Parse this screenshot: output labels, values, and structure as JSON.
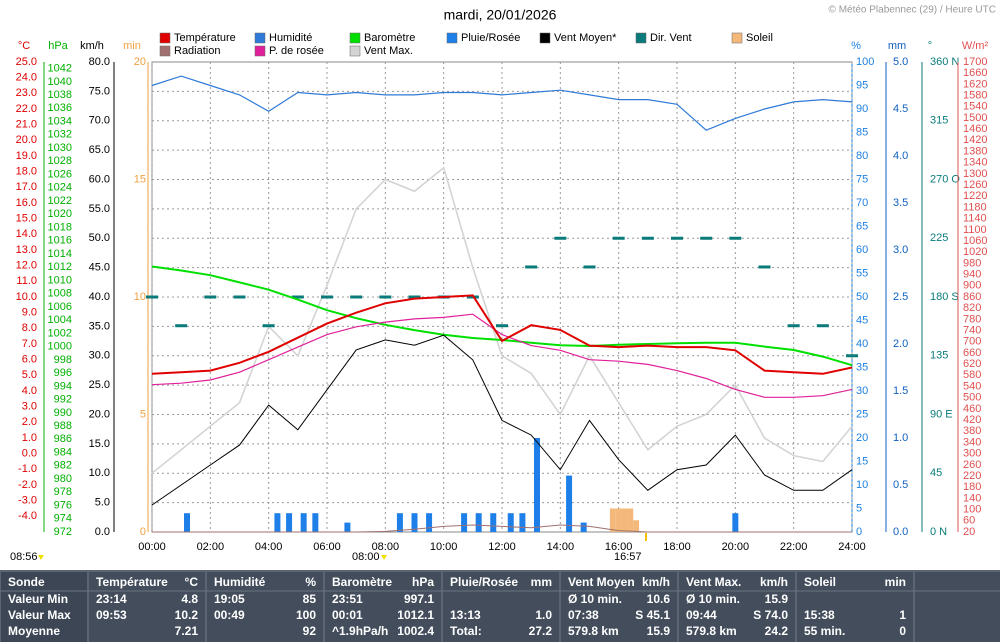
{
  "title": "mardi, 20/01/2026",
  "credit": "© Météo Plabennec (29) / Heure UTC",
  "chart_data": {
    "type": "line",
    "x": [
      0,
      1,
      2,
      3,
      4,
      5,
      6,
      7,
      8,
      9,
      10,
      11,
      12,
      13,
      14,
      15,
      16,
      17,
      18,
      19,
      20,
      21,
      22,
      23,
      24
    ],
    "xlim": [
      0,
      24
    ],
    "xticks": [
      {
        "value": 0,
        "label": "00:00"
      },
      {
        "value": 2,
        "label": "02:00"
      },
      {
        "value": 4,
        "label": "04:00"
      },
      {
        "value": 6,
        "label": "06:00"
      },
      {
        "value": 8,
        "label": "08:00"
      },
      {
        "value": 10,
        "label": "10:00"
      },
      {
        "value": 12,
        "label": "12:00"
      },
      {
        "value": 14,
        "label": "14:00"
      },
      {
        "value": 16,
        "label": "16:00"
      },
      {
        "value": 18,
        "label": "18:00"
      },
      {
        "value": 20,
        "label": "20:00"
      },
      {
        "value": 22,
        "label": "22:00"
      },
      {
        "value": 24,
        "label": "24:00"
      }
    ],
    "axes": [
      {
        "label": "°C",
        "side": "left",
        "color": "#e00000",
        "ylim": [
          -5,
          25
        ],
        "yticks": [
          {
            "value": 25,
            "label": "25.0"
          },
          {
            "value": 24,
            "label": "24.0"
          },
          {
            "value": 23,
            "label": "23.0"
          },
          {
            "value": 22,
            "label": "22.0"
          },
          {
            "value": 21,
            "label": "21.0"
          },
          {
            "value": 20,
            "label": "20.0"
          },
          {
            "value": 19,
            "label": "19.0"
          },
          {
            "value": 18,
            "label": "18.0"
          },
          {
            "value": 17,
            "label": "17.0"
          },
          {
            "value": 16,
            "label": "16.0"
          },
          {
            "value": 15,
            "label": "15.0"
          },
          {
            "value": 14,
            "label": "14.0"
          },
          {
            "value": 13,
            "label": "13.0"
          },
          {
            "value": 12,
            "label": "12.0"
          },
          {
            "value": 11,
            "label": "11.0"
          },
          {
            "value": 10,
            "label": "10.0"
          },
          {
            "value": 9,
            "label": "9.0"
          },
          {
            "value": 8,
            "label": "8.0"
          },
          {
            "value": 7,
            "label": "7.0"
          },
          {
            "value": 6,
            "label": "6.0"
          },
          {
            "value": 5,
            "label": "5.0"
          },
          {
            "value": 4,
            "label": "4.0"
          },
          {
            "value": 3,
            "label": "3.0"
          },
          {
            "value": 2,
            "label": "2.0"
          },
          {
            "value": 1,
            "label": "1.0"
          },
          {
            "value": 0,
            "label": "0.0"
          },
          {
            "value": -1,
            "label": "-1.0"
          },
          {
            "value": -2,
            "label": "-2.0"
          },
          {
            "value": -3,
            "label": "-3.0"
          },
          {
            "value": -4,
            "label": "-4.0"
          }
        ]
      },
      {
        "label": "hPa",
        "side": "left",
        "color": "#00b000",
        "ylim": [
          972,
          1043
        ],
        "yticks": [
          972,
          974,
          976,
          978,
          980,
          982,
          984,
          986,
          988,
          990,
          992,
          994,
          996,
          998,
          1000,
          1002,
          1004,
          1006,
          1008,
          1010,
          1012,
          1014,
          1016,
          1018,
          1020,
          1022,
          1024,
          1026,
          1028,
          1030,
          1032,
          1034,
          1036,
          1038,
          1040,
          1042
        ]
      },
      {
        "label": "km/h",
        "side": "left",
        "color": "#000000",
        "grid": true,
        "ylim": [
          0,
          80
        ],
        "yticks": [
          {
            "value": 0,
            "label": "0.0"
          },
          {
            "value": 5,
            "label": "5.0"
          },
          {
            "value": 10,
            "label": "10.0"
          },
          {
            "value": 15,
            "label": "15.0"
          },
          {
            "value": 20,
            "label": "20.0"
          },
          {
            "value": 25,
            "label": "25.0"
          },
          {
            "value": 30,
            "label": "30.0"
          },
          {
            "value": 35,
            "label": "35.0"
          },
          {
            "value": 40,
            "label": "40.0"
          },
          {
            "value": 45,
            "label": "45.0"
          },
          {
            "value": 50,
            "label": "50.0"
          },
          {
            "value": 55,
            "label": "55.0"
          },
          {
            "value": 60,
            "label": "60.0"
          },
          {
            "value": 65,
            "label": "65.0"
          },
          {
            "value": 70,
            "label": "70.0"
          },
          {
            "value": 75,
            "label": "75.0"
          },
          {
            "value": 80,
            "label": "80.0"
          }
        ]
      },
      {
        "label": "min",
        "side": "left",
        "color": "#f0a040",
        "ylim": [
          0,
          20
        ],
        "yticks": [
          0,
          5,
          10,
          15,
          20
        ]
      },
      {
        "label": "%",
        "side": "right",
        "color": "#2080e0",
        "ylim": [
          0,
          100
        ],
        "yticks": [
          0,
          5,
          10,
          15,
          20,
          25,
          30,
          35,
          40,
          45,
          50,
          55,
          60,
          65,
          70,
          75,
          80,
          85,
          90,
          95,
          100
        ]
      },
      {
        "label": "mm",
        "side": "right",
        "color": "#1060c0",
        "ylim": [
          0,
          5
        ],
        "yticks": [
          {
            "value": 0,
            "label": "0.0"
          },
          0.5,
          {
            "value": 1,
            "label": "1.0"
          },
          1.5,
          {
            "value": 2,
            "label": "2.0"
          },
          2.5,
          {
            "value": 3,
            "label": "3.0"
          },
          3.5,
          {
            "value": 4,
            "label": "4.0"
          },
          4.5,
          {
            "value": 5,
            "label": "5.0"
          }
        ]
      },
      {
        "label": "°",
        "side": "right",
        "color": "#0a7a7a",
        "ylim": [
          0,
          360
        ],
        "yticks": [
          {
            "value": 0,
            "label": "0   N"
          },
          45,
          {
            "value": 90,
            "label": "90   E"
          },
          135,
          {
            "value": 180,
            "label": "180 S"
          },
          225,
          {
            "value": 270,
            "label": "270 O"
          },
          315,
          {
            "value": 360,
            "label": "360 N"
          }
        ]
      },
      {
        "label": "W/m²",
        "side": "right",
        "color": "#e05050",
        "ylim": [
          20,
          1700
        ],
        "yticks": [
          20,
          60,
          100,
          140,
          180,
          220,
          260,
          300,
          340,
          380,
          420,
          460,
          500,
          540,
          580,
          620,
          660,
          700,
          740,
          780,
          820,
          860,
          900,
          940,
          980,
          1020,
          1060,
          1100,
          1140,
          1180,
          1220,
          1260,
          1300,
          1340,
          1380,
          1420,
          1460,
          1500,
          1540,
          1580,
          1620,
          1660,
          1700
        ]
      }
    ],
    "series": [
      {
        "name": "Température",
        "type": "line",
        "axis": "°C",
        "color": "#e00000",
        "values": [
          5.1,
          5.2,
          5.3,
          5.8,
          6.5,
          7.4,
          8.3,
          9.0,
          9.6,
          9.9,
          10.0,
          10.1,
          7.2,
          8.2,
          7.9,
          6.9,
          6.8,
          6.9,
          6.8,
          6.8,
          6.6,
          5.3,
          5.2,
          5.1,
          5.5
        ]
      },
      {
        "name": "Humidité",
        "type": "line",
        "axis": "%",
        "color": "#2f7ad8",
        "values": [
          95,
          97,
          95,
          93,
          89.5,
          93.5,
          93,
          93.5,
          93,
          93,
          93.5,
          93.5,
          93,
          93.5,
          94,
          93,
          92,
          92,
          91,
          85.5,
          88,
          90,
          91.5,
          92,
          91.5
        ]
      },
      {
        "name": "Baromètre",
        "type": "line",
        "axis": "hPa",
        "color": "#00e000",
        "values": [
          1012.1,
          1011.5,
          1010.8,
          1009.7,
          1008.6,
          1007.1,
          1005.5,
          1004.3,
          1003.3,
          1002.5,
          1001.8,
          1001.3,
          1001.0,
          1000.6,
          1000.2,
          1000.1,
          1000.3,
          1000.4,
          1000.5,
          1000.6,
          1000.6,
          1000.0,
          999.5,
          998.5,
          997.2
        ]
      },
      {
        "name": "Pluie/Rosée",
        "type": "bar",
        "axis": "mm",
        "color": "#1e7fe8",
        "x": [
          1.2,
          4.3,
          4.7,
          5.2,
          5.6,
          6.7,
          8.5,
          9.0,
          9.5,
          10.7,
          11.2,
          11.7,
          12.3,
          12.7,
          13.2,
          14.3,
          14.8,
          20.0
        ],
        "values": [
          0.2,
          0.2,
          0.2,
          0.2,
          0.2,
          0.1,
          0.2,
          0.2,
          0.2,
          0.2,
          0.2,
          0.2,
          0.2,
          0.2,
          1.0,
          0.6,
          0.1,
          0.2
        ]
      },
      {
        "name": "Vent Moyen*",
        "type": "line",
        "axis": "km/h",
        "color": "#000000",
        "values": [
          4.6,
          8.0,
          11.4,
          14.8,
          21.6,
          17.4,
          24.2,
          31.0,
          32.7,
          31.8,
          33.5,
          29.3,
          19.0,
          16.5,
          10.6,
          19.0,
          12.3,
          7.1,
          10.6,
          11.4,
          16.5,
          9.7,
          7.1,
          7.1,
          10.6
        ]
      },
      {
        "name": "Dir. Vent",
        "type": "dash",
        "axis": "°",
        "color": "#0a7a7a",
        "values": [
          180,
          158,
          180,
          180,
          158,
          180,
          180,
          180,
          180,
          180,
          180,
          180,
          158,
          203,
          225,
          203,
          225,
          225,
          225,
          225,
          225,
          203,
          158,
          158,
          135
        ]
      },
      {
        "name": "Soleil",
        "type": "bar",
        "axis": "min",
        "color": "#f4b87a",
        "x": [
          15.8,
          16.0,
          16.2,
          16.4,
          16.6
        ],
        "values": [
          1,
          1,
          1,
          1,
          0.5
        ]
      },
      {
        "name": "Radiation",
        "type": "line",
        "axis": "W/m²",
        "color": "#a07070",
        "values": [
          20,
          20,
          20,
          20,
          20,
          20,
          20,
          20,
          22,
          30,
          40,
          45,
          40,
          35,
          45,
          40,
          25,
          20,
          20,
          20,
          20,
          20,
          20,
          20,
          20
        ]
      },
      {
        "name": "P. de rosée",
        "type": "line",
        "axis": "°C",
        "color": "#e0209a",
        "values": [
          4.4,
          4.5,
          4.7,
          5.2,
          6.0,
          6.8,
          7.6,
          8.1,
          8.4,
          8.6,
          8.7,
          8.9,
          7.6,
          6.9,
          6.6,
          6.0,
          5.9,
          5.7,
          5.3,
          4.8,
          4.1,
          3.6,
          3.6,
          3.7,
          4.1
        ]
      },
      {
        "name": "Vent Max.",
        "type": "line",
        "axis": "km/h",
        "color": "#d4d4d4",
        "values": [
          10,
          14,
          18,
          22,
          35,
          30,
          42,
          55,
          60,
          58,
          62,
          45,
          30,
          27,
          20,
          30,
          22,
          14,
          18,
          20,
          25,
          16,
          13,
          12,
          18
        ]
      }
    ],
    "annotations": [
      "08:56",
      "08:00",
      "16:57"
    ]
  },
  "table": {
    "header": [
      [
        "Sonde"
      ],
      [
        "Température",
        "°C"
      ],
      [
        "Humidité",
        "%"
      ],
      [
        "Baromètre",
        "hPa"
      ],
      [
        "Pluie/Rosée",
        "mm"
      ],
      [
        "Vent Moyen",
        "km/h"
      ],
      [
        "Vent Max.",
        "km/h"
      ],
      [
        "Soleil",
        "min"
      ]
    ],
    "rows": [
      [
        "Valeur Min",
        [
          "23:14",
          "4.8"
        ],
        [
          "19:05",
          "85"
        ],
        [
          "23:51",
          "997.1"
        ],
        [],
        [
          "Ø 10 min.",
          "10.6"
        ],
        [
          "Ø 10 min.",
          "15.9"
        ],
        []
      ],
      [
        "Valeur Max",
        [
          "09:53",
          "10.2"
        ],
        [
          "00:49",
          "100"
        ],
        [
          "00:01",
          "1012.1"
        ],
        [
          "13:13",
          "1.0"
        ],
        [
          "07:38",
          "S 45.1"
        ],
        [
          "09:44",
          "S 74.0"
        ],
        [
          "15:38",
          "1"
        ]
      ],
      [
        "Moyenne",
        [
          "7.21"
        ],
        [
          "92"
        ],
        [
          "^1.9hPa/h",
          "1002.4"
        ],
        [
          "Total:",
          "27.2"
        ],
        [
          "579.8 km",
          "15.9"
        ],
        [
          "579.8 km",
          "24.2"
        ],
        [
          "55 min.",
          "0"
        ]
      ]
    ]
  }
}
